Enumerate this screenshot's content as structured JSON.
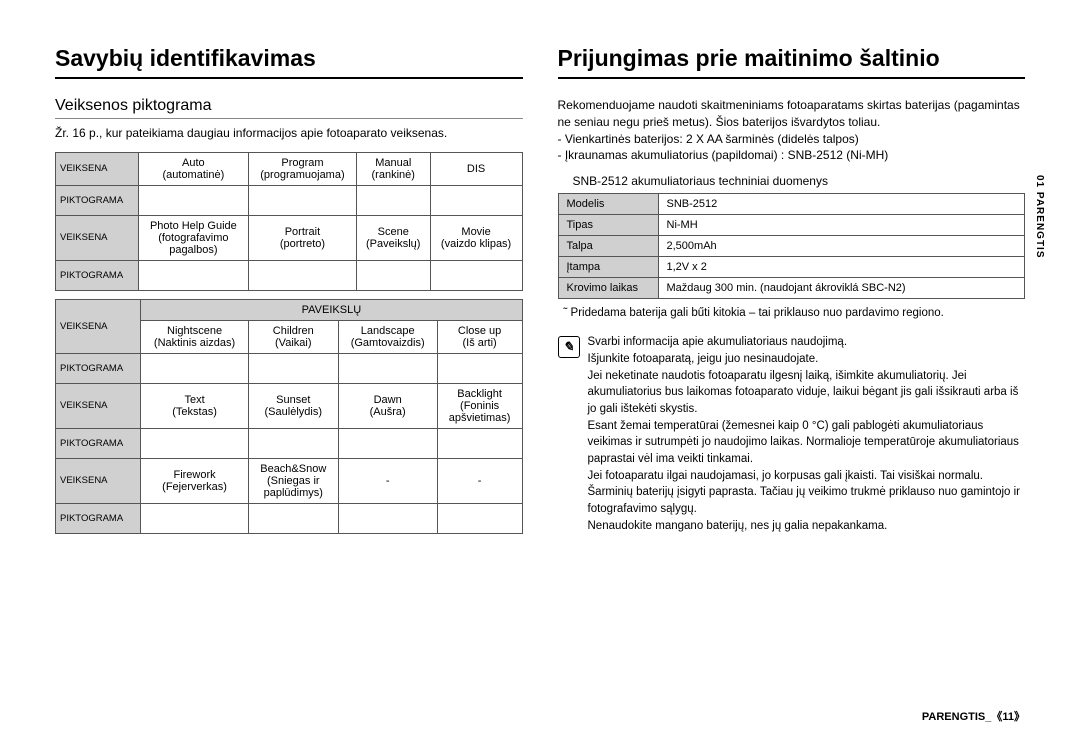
{
  "left": {
    "title": "Savybių identifikavimas",
    "subtitle": "Veiksenos piktograma",
    "intro": "Žr. 16 p., kur pateikiama daugiau informacijos apie fotoaparato veiksenas.",
    "rowLabelMode": "VEIKSENA",
    "rowLabelIcon": "PIKTOGRAMA",
    "sceneCategory": "PAVEIKSLŲ",
    "table1": [
      [
        "Auto\n(automatinė)",
        "Program\n(programuojama)",
        "Manual\n(rankinė)",
        "DIS"
      ],
      [
        "Photo Help Guide\n(fotografavimo\npagalbos)",
        "Portrait\n(portreto)",
        "Scene\n(Paveikslų)",
        "Movie\n(vaizdo klipas)"
      ]
    ],
    "table2": [
      [
        "Nightscene\n(Naktinis aizdas)",
        "Children\n(Vaikai)",
        "Landscape\n(Gamtovaizdis)",
        "Close up\n(Iš arti)"
      ],
      [
        "Text\n(Tekstas)",
        "Sunset\n(Saulėlydis)",
        "Dawn\n(Aušra)",
        "Backlight\n(Foninis\napšvietimas)"
      ],
      [
        "Firework\n(Fejerverkas)",
        "Beach&Snow\n(Sniegas ir\npaplūdimys)",
        "-",
        "-"
      ]
    ]
  },
  "right": {
    "title": "Prijungimas prie maitinimo šaltinio",
    "intro": "Rekomenduojame naudoti skaitmeniniams fotoaparatams skirtas baterijas (pagamintas ne seniau negu prieš metus). Šios baterijos išvardytos toliau.\n- Vienkartinės baterijos: 2 X AA šarminės (didelės talpos)\n- Įkraunamas akumuliatorius (papildomai) : SNB-2512 (Ni-MH)",
    "specTitle": "SNB-2512  akumuliatoriaus techniniai duomenys",
    "spec": [
      [
        "Modelis",
        "SNB-2512"
      ],
      [
        "Tipas",
        "Ni-MH"
      ],
      [
        "Talpa",
        "2,500mAh"
      ],
      [
        "Įtampa",
        "1,2V x 2"
      ],
      [
        "Krovimo laikas",
        "Maždaug 300 min. (naudojant ákroviklá SBC-N2)"
      ]
    ],
    "tildeNote": "˜  Pridedama baterija gali bűti kitokia – tai priklauso nuo pardavimo regiono.",
    "noteIcon": "✎",
    "noteLines": [
      "Svarbi informacija apie akumuliatoriaus naudojimą.",
      "Išjunkite fotoaparatą, jeigu juo nesinaudojate.",
      "Jei neketinate naudotis fotoaparatu ilgesnį laiką, išimkite akumuliatorių. Jei akumuliatorius bus laikomas fotoaparato viduje, laikui bėgant jis gali išsikrauti arba iš jo gali ištekėti skystis.",
      "Esant žemai temperatūrai (žemesnei kaip 0 °C) gali pablogėti akumuliatoriaus veikimas ir sutrumpėti jo naudojimo laikas. Normalioje temperatūroje akumuliatoriaus paprastai vėl ima veikti tinkamai.",
      "Jei fotoaparatu ilgai naudojamasi, jo korpusas gali įkaisti. Tai visiškai normalu.",
      "Šarminių baterijų įsigyti paprasta. Tačiau jų veikimo trukmė priklauso nuo gamintojo ir fotografavimo sąlygų.",
      "Nenaudokite mangano baterijų, nes jų galia nepakankama."
    ]
  },
  "sideTab": "01 PARENGTIS",
  "footer": {
    "label": "PARENGTIS_",
    "page": "《11》"
  }
}
